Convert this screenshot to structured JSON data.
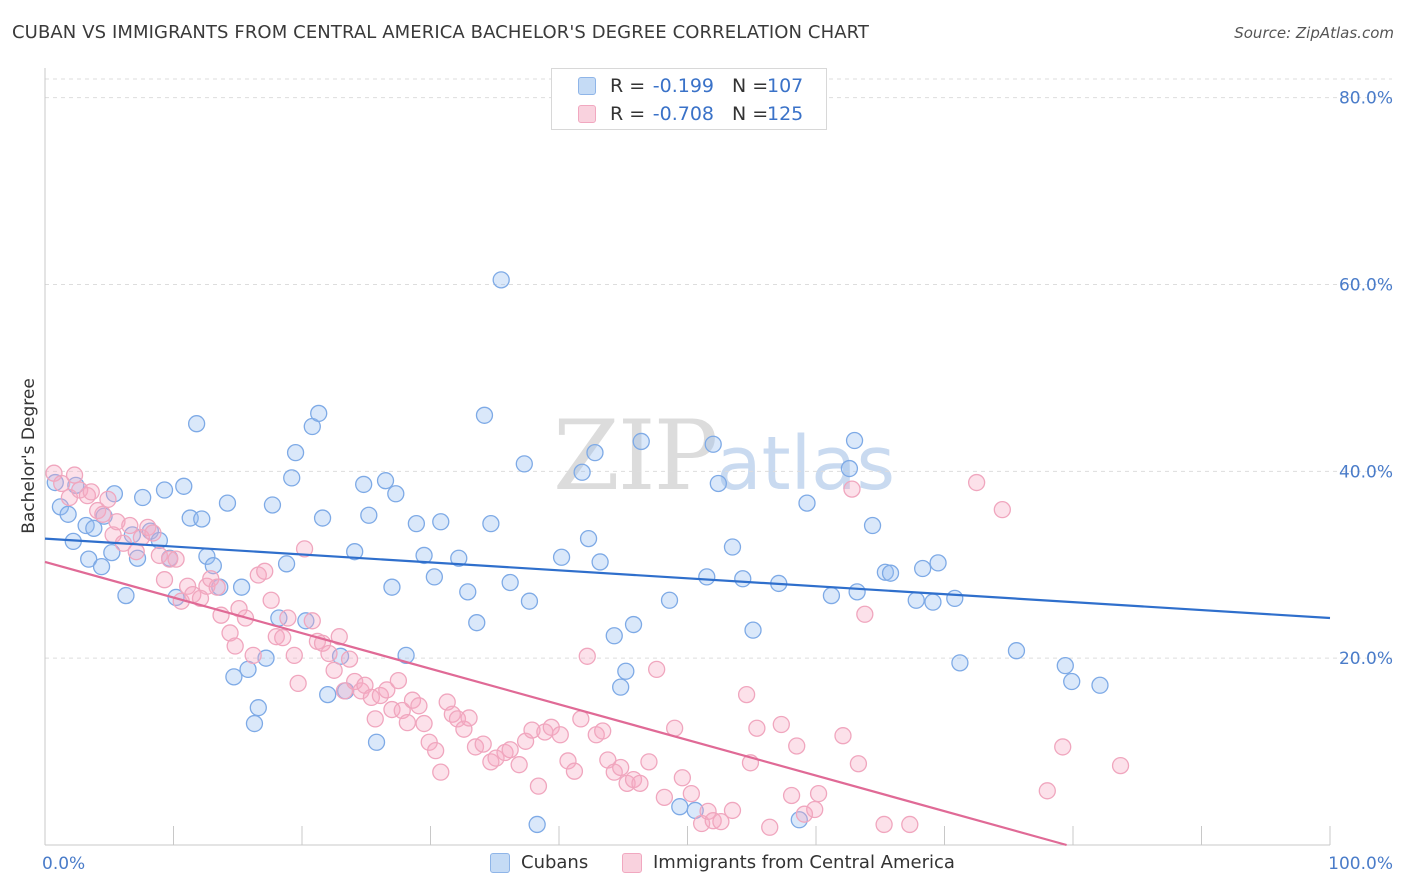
{
  "title": "CUBAN VS IMMIGRANTS FROM CENTRAL AMERICA BACHELOR'S DEGREE CORRELATION CHART",
  "source": "Source: ZipAtlas.com",
  "watermark": {
    "zip": "ZIP",
    "atlas": "atlas"
  },
  "legend": {
    "rows": [
      {
        "r_label": "R =",
        "r_value": "-0.199",
        "n_label": "N =",
        "n_value": "107",
        "color": "#8fb5e8",
        "fill": "#c5dbf5"
      },
      {
        "r_label": "R =",
        "r_value": "-0.708",
        "n_label": "N =",
        "n_value": "125",
        "color": "#f1a8c0",
        "fill": "#f9d2de"
      }
    ]
  },
  "bottom_legend": [
    {
      "label": "Cubans",
      "color": "#8fb5e8",
      "fill": "#c5dbf5"
    },
    {
      "label": "Immigrants from Central America",
      "color": "#f1a8c0",
      "fill": "#f9d2de"
    }
  ],
  "chart_data": {
    "type": "scatter",
    "title": "CUBAN VS IMMIGRANTS FROM CENTRAL AMERICA BACHELOR'S DEGREE CORRELATION CHART",
    "xlabel": "",
    "ylabel": "Bachelor's Degree",
    "xlim": [
      0,
      100
    ],
    "ylim": [
      0,
      82
    ],
    "x_tick_labels": [
      "0.0%",
      "100.0%"
    ],
    "y_ticks": [
      20,
      40,
      60,
      80
    ],
    "y_tick_labels": [
      "20.0%",
      "40.0%",
      "60.0%",
      "80.0%"
    ],
    "grid": "horizontal dashed",
    "series": [
      {
        "name": "Cubans",
        "color": "#7eaae6",
        "fill": "rgba(150,190,240,0.35)",
        "trend": {
          "x": [
            0,
            100
          ],
          "y": [
            32.8,
            24.3
          ],
          "color": "#2f6fcc"
        },
        "points": [
          [
            0.8,
            38.8
          ],
          [
            1.2,
            36.2
          ],
          [
            1.8,
            35.4
          ],
          [
            2.2,
            32.5
          ],
          [
            2.4,
            38.5
          ],
          [
            3.2,
            34.2
          ],
          [
            3.4,
            30.6
          ],
          [
            3.8,
            33.9
          ],
          [
            4.4,
            29.8
          ],
          [
            4.6,
            35.2
          ],
          [
            5.2,
            31.3
          ],
          [
            5.4,
            37.6
          ],
          [
            6.3,
            26.7
          ],
          [
            6.8,
            33.2
          ],
          [
            7.2,
            30.7
          ],
          [
            7.6,
            37.2
          ],
          [
            8.2,
            33.6
          ],
          [
            8.9,
            32.6
          ],
          [
            9.3,
            38.0
          ],
          [
            9.7,
            30.7
          ],
          [
            10.2,
            26.5
          ],
          [
            10.8,
            38.4
          ],
          [
            11.3,
            35.0
          ],
          [
            11.8,
            45.1
          ],
          [
            12.2,
            34.9
          ],
          [
            12.6,
            30.9
          ],
          [
            13.1,
            29.9
          ],
          [
            13.6,
            27.6
          ],
          [
            14.2,
            36.6
          ],
          [
            14.7,
            18.0
          ],
          [
            15.3,
            27.6
          ],
          [
            15.8,
            18.8
          ],
          [
            16.3,
            13.0
          ],
          [
            16.6,
            14.7
          ],
          [
            17.2,
            20.0
          ],
          [
            17.7,
            36.4
          ],
          [
            18.2,
            24.3
          ],
          [
            18.8,
            30.1
          ],
          [
            19.2,
            39.3
          ],
          [
            19.5,
            42.0
          ],
          [
            20.3,
            24.0
          ],
          [
            20.8,
            44.8
          ],
          [
            21.3,
            46.2
          ],
          [
            21.6,
            35.0
          ],
          [
            22.0,
            16.1
          ],
          [
            23.0,
            20.2
          ],
          [
            23.4,
            16.5
          ],
          [
            24.1,
            31.4
          ],
          [
            24.8,
            38.6
          ],
          [
            25.2,
            35.3
          ],
          [
            25.8,
            11.0
          ],
          [
            26.5,
            39.0
          ],
          [
            27.0,
            27.6
          ],
          [
            27.3,
            37.6
          ],
          [
            28.1,
            20.3
          ],
          [
            28.9,
            34.4
          ],
          [
            29.5,
            31.0
          ],
          [
            30.3,
            28.7
          ],
          [
            30.8,
            34.6
          ],
          [
            32.2,
            30.7
          ],
          [
            32.9,
            27.1
          ],
          [
            33.6,
            23.8
          ],
          [
            34.2,
            46.0
          ],
          [
            34.7,
            34.4
          ],
          [
            35.5,
            60.5
          ],
          [
            36.2,
            28.1
          ],
          [
            37.3,
            40.8
          ],
          [
            37.7,
            26.1
          ],
          [
            38.3,
            2.2
          ],
          [
            40.2,
            30.8
          ],
          [
            41.8,
            39.9
          ],
          [
            42.3,
            32.8
          ],
          [
            42.8,
            42.0
          ],
          [
            43.2,
            30.3
          ],
          [
            44.3,
            22.4
          ],
          [
            44.8,
            16.9
          ],
          [
            45.2,
            18.6
          ],
          [
            45.8,
            23.6
          ],
          [
            46.4,
            43.2
          ],
          [
            48.6,
            26.2
          ],
          [
            49.4,
            4.1
          ],
          [
            50.6,
            3.7
          ],
          [
            51.5,
            28.7
          ],
          [
            52.0,
            42.9
          ],
          [
            52.4,
            38.7
          ],
          [
            53.5,
            31.9
          ],
          [
            54.3,
            28.5
          ],
          [
            55.1,
            23.0
          ],
          [
            57.1,
            28.0
          ],
          [
            58.7,
            2.7
          ],
          [
            59.3,
            36.6
          ],
          [
            61.2,
            26.7
          ],
          [
            62.6,
            40.3
          ],
          [
            63.0,
            43.3
          ],
          [
            63.2,
            27.1
          ],
          [
            64.4,
            34.2
          ],
          [
            65.4,
            29.2
          ],
          [
            65.8,
            29.1
          ],
          [
            67.8,
            26.2
          ],
          [
            68.3,
            29.6
          ],
          [
            69.1,
            26.0
          ],
          [
            69.5,
            30.2
          ],
          [
            70.8,
            26.4
          ],
          [
            71.2,
            19.5
          ],
          [
            75.6,
            20.8
          ],
          [
            79.4,
            19.2
          ],
          [
            79.9,
            17.5
          ],
          [
            82.1,
            17.1
          ]
        ]
      },
      {
        "name": "Immigrants from Central America",
        "color": "#f0a6be",
        "fill": "rgba(245,170,195,0.35)",
        "trend": {
          "x": [
            0,
            79.5
          ],
          "y": [
            30.3,
            0
          ],
          "color": "#e06a96"
        },
        "points": [
          [
            0.7,
            39.8
          ],
          [
            1.3,
            38.7
          ],
          [
            1.9,
            37.2
          ],
          [
            2.3,
            39.6
          ],
          [
            2.7,
            38.0
          ],
          [
            3.3,
            37.4
          ],
          [
            3.6,
            37.8
          ],
          [
            4.1,
            35.8
          ],
          [
            4.5,
            35.4
          ],
          [
            4.9,
            37.0
          ],
          [
            5.3,
            33.2
          ],
          [
            5.6,
            34.6
          ],
          [
            6.1,
            32.3
          ],
          [
            6.6,
            34.2
          ],
          [
            7.1,
            31.4
          ],
          [
            7.5,
            32.9
          ],
          [
            8.0,
            34.0
          ],
          [
            8.4,
            33.4
          ],
          [
            8.9,
            31.0
          ],
          [
            9.3,
            28.4
          ],
          [
            9.7,
            30.6
          ],
          [
            10.2,
            30.6
          ],
          [
            10.6,
            26.1
          ],
          [
            11.1,
            27.7
          ],
          [
            11.5,
            26.8
          ],
          [
            12.1,
            26.4
          ],
          [
            12.6,
            27.7
          ],
          [
            12.9,
            28.5
          ],
          [
            13.4,
            27.6
          ],
          [
            13.7,
            24.6
          ],
          [
            14.4,
            22.7
          ],
          [
            14.8,
            21.3
          ],
          [
            15.1,
            25.3
          ],
          [
            15.6,
            24.3
          ],
          [
            16.2,
            20.3
          ],
          [
            16.6,
            28.9
          ],
          [
            17.1,
            29.3
          ],
          [
            17.6,
            26.2
          ],
          [
            18.0,
            22.3
          ],
          [
            18.5,
            22.2
          ],
          [
            18.9,
            24.3
          ],
          [
            19.4,
            20.3
          ],
          [
            19.7,
            17.3
          ],
          [
            20.2,
            31.7
          ],
          [
            20.8,
            24.0
          ],
          [
            21.2,
            21.8
          ],
          [
            21.6,
            21.6
          ],
          [
            22.1,
            20.5
          ],
          [
            22.5,
            18.7
          ],
          [
            22.9,
            22.3
          ],
          [
            23.3,
            16.5
          ],
          [
            23.7,
            19.9
          ],
          [
            24.1,
            17.5
          ],
          [
            24.6,
            16.5
          ],
          [
            24.9,
            17.1
          ],
          [
            25.4,
            15.8
          ],
          [
            25.7,
            13.5
          ],
          [
            26.1,
            16.0
          ],
          [
            26.6,
            16.6
          ],
          [
            27.0,
            14.5
          ],
          [
            27.5,
            17.6
          ],
          [
            27.8,
            14.4
          ],
          [
            28.2,
            13.1
          ],
          [
            28.6,
            15.5
          ],
          [
            29.1,
            14.9
          ],
          [
            29.5,
            13.0
          ],
          [
            29.9,
            11.0
          ],
          [
            30.4,
            10.1
          ],
          [
            30.8,
            7.8
          ],
          [
            31.3,
            15.3
          ],
          [
            31.7,
            14.0
          ],
          [
            32.1,
            13.5
          ],
          [
            32.6,
            12.4
          ],
          [
            33.0,
            13.6
          ],
          [
            33.5,
            10.5
          ],
          [
            34.1,
            10.8
          ],
          [
            34.7,
            8.9
          ],
          [
            35.1,
            9.3
          ],
          [
            35.8,
            9.9
          ],
          [
            36.2,
            10.2
          ],
          [
            36.9,
            8.6
          ],
          [
            37.4,
            11.1
          ],
          [
            37.9,
            12.3
          ],
          [
            38.4,
            6.3
          ],
          [
            38.9,
            12.1
          ],
          [
            39.4,
            12.6
          ],
          [
            40.1,
            11.8
          ],
          [
            40.7,
            9.0
          ],
          [
            41.2,
            7.9
          ],
          [
            41.7,
            13.5
          ],
          [
            42.2,
            20.2
          ],
          [
            42.9,
            11.8
          ],
          [
            43.4,
            12.2
          ],
          [
            43.8,
            9.1
          ],
          [
            44.3,
            7.8
          ],
          [
            44.8,
            8.3
          ],
          [
            45.3,
            6.6
          ],
          [
            45.8,
            7.0
          ],
          [
            46.3,
            6.6
          ],
          [
            47.0,
            8.9
          ],
          [
            47.6,
            18.8
          ],
          [
            48.2,
            5.1
          ],
          [
            49.0,
            12.5
          ],
          [
            49.6,
            7.2
          ],
          [
            50.3,
            5.5
          ],
          [
            51.1,
            2.3
          ],
          [
            51.6,
            3.6
          ],
          [
            52.0,
            2.6
          ],
          [
            52.6,
            2.5
          ],
          [
            53.5,
            3.7
          ],
          [
            54.6,
            16.1
          ],
          [
            54.9,
            8.8
          ],
          [
            55.4,
            12.5
          ],
          [
            56.4,
            1.9
          ],
          [
            57.3,
            12.9
          ],
          [
            58.1,
            5.3
          ],
          [
            58.5,
            10.6
          ],
          [
            59.1,
            3.3
          ],
          [
            59.9,
            3.8
          ],
          [
            60.2,
            5.5
          ],
          [
            62.1,
            11.7
          ],
          [
            62.8,
            38.1
          ],
          [
            63.3,
            8.7
          ],
          [
            63.8,
            24.7
          ],
          [
            65.3,
            2.2
          ],
          [
            67.3,
            2.2
          ],
          [
            72.5,
            38.8
          ],
          [
            74.5,
            35.9
          ],
          [
            78.0,
            5.8
          ],
          [
            79.2,
            10.5
          ],
          [
            83.7,
            8.5
          ]
        ]
      }
    ]
  }
}
